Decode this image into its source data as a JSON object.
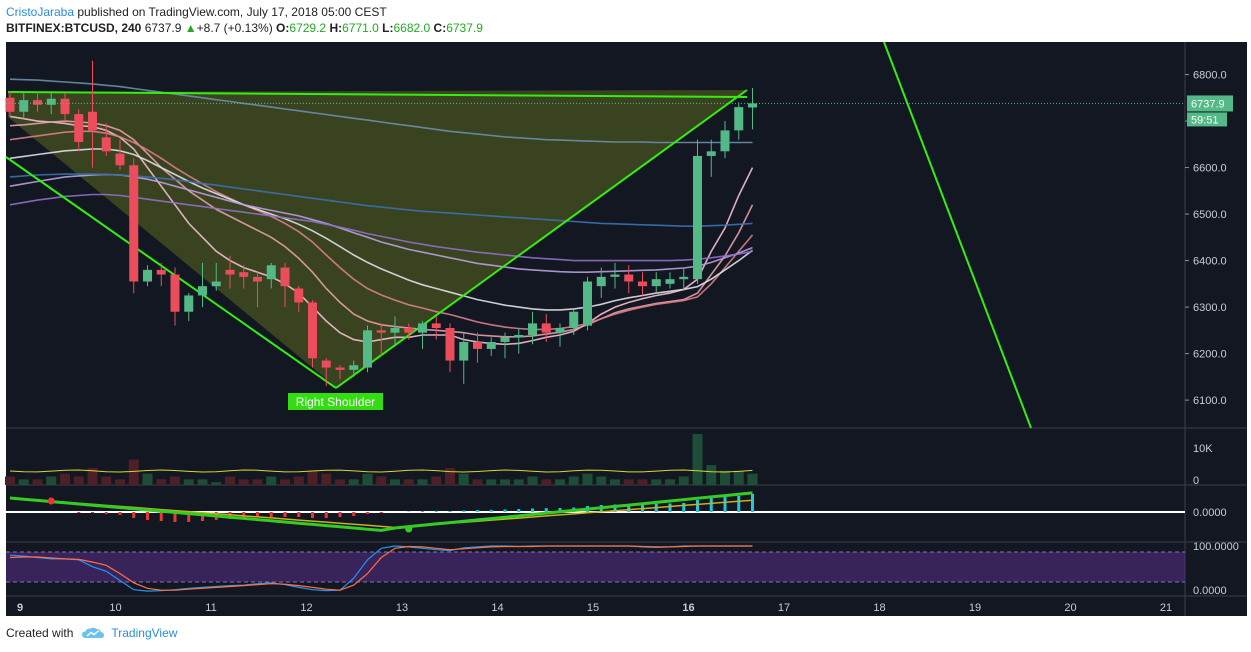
{
  "header": {
    "author": "CristoJaraba",
    "published": " published on TradingView.com, July 17, 2018 05:00 CEST",
    "symbol": "BITFINEX:BTCUSD, 240",
    "last": "6737.9",
    "change": "+8.7 (+0.13%)",
    "o_label": "O:",
    "o": "6729.2",
    "h_label": "H:",
    "h": "6771.0",
    "l_label": "L:",
    "l": "6682.0",
    "c_label": "C:",
    "c": "6737.9"
  },
  "footer": {
    "created": "Created with",
    "brand": "TradingView"
  },
  "colors": {
    "bg": "#131722",
    "up": "#53b987",
    "down": "#eb4d5c",
    "trend": "#33ee11",
    "panel_border": "#3a3f4a"
  },
  "chart_data": {
    "type": "candlestick",
    "x_ticks": [
      "9",
      "10",
      "11",
      "12",
      "13",
      "14",
      "15",
      "16",
      "17",
      "18",
      "19",
      "20",
      "21"
    ],
    "y_ticks": [
      "6800.0",
      "6700.0",
      "6600.0",
      "6500.0",
      "6400.0",
      "6300.0",
      "6200.0",
      "6100.0"
    ],
    "ylim": [
      6040,
      6870
    ],
    "last_price_label": "6737.9",
    "countdown_label": "59:51",
    "annotation": "Right Shoulder",
    "volume_ticks": [
      "10K",
      "0"
    ],
    "macd_ticks": [
      "0.0000"
    ],
    "rsi_ticks": [
      "100.0000",
      "0.0000"
    ],
    "candles": [
      [
        6750,
        6765,
        6710,
        6720
      ],
      [
        6720,
        6760,
        6705,
        6745
      ],
      [
        6745,
        6762,
        6720,
        6735
      ],
      [
        6735,
        6760,
        6715,
        6748
      ],
      [
        6748,
        6760,
        6700,
        6715
      ],
      [
        6715,
        6725,
        6635,
        6655
      ],
      [
        6720,
        6830,
        6600,
        6680
      ],
      [
        6665,
        6695,
        6625,
        6635
      ],
      [
        6630,
        6660,
        6595,
        6605
      ],
      [
        6605,
        6620,
        6330,
        6355
      ],
      [
        6355,
        6390,
        6345,
        6380
      ],
      [
        6380,
        6395,
        6345,
        6370
      ],
      [
        6370,
        6385,
        6260,
        6290
      ],
      [
        6290,
        6330,
        6270,
        6325
      ],
      [
        6325,
        6395,
        6300,
        6345
      ],
      [
        6345,
        6395,
        6335,
        6355
      ],
      [
        6380,
        6410,
        6340,
        6370
      ],
      [
        6375,
        6390,
        6340,
        6365
      ],
      [
        6365,
        6375,
        6300,
        6355
      ],
      [
        6360,
        6395,
        6340,
        6390
      ],
      [
        6385,
        6395,
        6300,
        6345
      ],
      [
        6340,
        6345,
        6290,
        6310
      ],
      [
        6310,
        6315,
        6170,
        6190
      ],
      [
        6185,
        6190,
        6130,
        6170
      ],
      [
        6170,
        6175,
        6145,
        6165
      ],
      [
        6165,
        6185,
        6150,
        6175
      ],
      [
        6170,
        6260,
        6160,
        6250
      ],
      [
        6250,
        6265,
        6195,
        6245
      ],
      [
        6245,
        6280,
        6215,
        6255
      ],
      [
        6255,
        6265,
        6230,
        6245
      ],
      [
        6245,
        6270,
        6210,
        6265
      ],
      [
        6265,
        6280,
        6230,
        6255
      ],
      [
        6255,
        6265,
        6160,
        6185
      ],
      [
        6185,
        6245,
        6135,
        6225
      ],
      [
        6225,
        6245,
        6180,
        6210
      ],
      [
        6210,
        6235,
        6195,
        6225
      ],
      [
        6225,
        6245,
        6190,
        6235
      ],
      [
        6235,
        6255,
        6200,
        6240
      ],
      [
        6240,
        6290,
        6220,
        6265
      ],
      [
        6265,
        6285,
        6225,
        6245
      ],
      [
        6245,
        6265,
        6215,
        6255
      ],
      [
        6255,
        6295,
        6240,
        6290
      ],
      [
        6260,
        6365,
        6250,
        6355
      ],
      [
        6345,
        6385,
        6320,
        6365
      ],
      [
        6365,
        6395,
        6340,
        6370
      ],
      [
        6370,
        6390,
        6330,
        6355
      ],
      [
        6355,
        6375,
        6325,
        6345
      ],
      [
        6345,
        6375,
        6330,
        6360
      ],
      [
        6350,
        6375,
        6340,
        6360
      ],
      [
        6360,
        6385,
        6335,
        6365
      ],
      [
        6360,
        6660,
        6350,
        6625
      ],
      [
        6625,
        6660,
        6580,
        6635
      ],
      [
        6635,
        6700,
        6620,
        6680
      ],
      [
        6680,
        6740,
        6660,
        6730
      ],
      [
        6729.2,
        6771,
        6682,
        6737.9
      ]
    ],
    "ma_lines": [
      {
        "color": "#f2c0d0",
        "values": [
          6710,
          6705,
          6700,
          6698,
          6695,
          6690,
          6688,
          6680,
          6665,
          6640,
          6600,
          6560,
          6520,
          6480,
          6450,
          6420,
          6400,
          6385,
          6375,
          6365,
          6350,
          6330,
          6300,
          6270,
          6245,
          6230,
          6225,
          6230,
          6235,
          6235,
          6240,
          6240,
          6240,
          6230,
          6225,
          6222,
          6220,
          6222,
          6228,
          6235,
          6240,
          6248,
          6265,
          6285,
          6300,
          6310,
          6318,
          6325,
          6330,
          6338,
          6360,
          6420,
          6470,
          6540,
          6600
        ]
      },
      {
        "color": "#e8a0a8",
        "values": [
          6690,
          6692,
          6695,
          6698,
          6700,
          6698,
          6696,
          6690,
          6680,
          6660,
          6630,
          6600,
          6575,
          6550,
          6530,
          6510,
          6495,
          6480,
          6465,
          6450,
          6430,
          6405,
          6375,
          6340,
          6310,
          6285,
          6270,
          6262,
          6258,
          6255,
          6252,
          6250,
          6248,
          6245,
          6240,
          6238,
          6236,
          6236,
          6238,
          6242,
          6246,
          6252,
          6262,
          6275,
          6288,
          6296,
          6302,
          6308,
          6312,
          6316,
          6330,
          6370,
          6410,
          6460,
          6520
        ]
      },
      {
        "color": "#d9808a",
        "values": [
          6660,
          6664,
          6668,
          6672,
          6676,
          6678,
          6678,
          6674,
          6666,
          6654,
          6638,
          6620,
          6600,
          6582,
          6565,
          6548,
          6534,
          6520,
          6508,
          6495,
          6480,
          6462,
          6440,
          6412,
          6385,
          6360,
          6340,
          6326,
          6315,
          6305,
          6298,
          6290,
          6284,
          6276,
          6268,
          6262,
          6257,
          6254,
          6252,
          6252,
          6254,
          6258,
          6265,
          6275,
          6285,
          6293,
          6300,
          6306,
          6310,
          6314,
          6322,
          6350,
          6385,
          6420,
          6455
        ]
      },
      {
        "color": "#e0e0e8",
        "values": [
          6620,
          6624,
          6628,
          6632,
          6636,
          6638,
          6640,
          6640,
          6636,
          6628,
          6615,
          6600,
          6585,
          6570,
          6556,
          6544,
          6532,
          6520,
          6510,
          6500,
          6490,
          6478,
          6464,
          6448,
          6430,
          6412,
          6396,
          6382,
          6370,
          6358,
          6348,
          6340,
          6332,
          6324,
          6316,
          6310,
          6304,
          6300,
          6296,
          6294,
          6294,
          6296,
          6300,
          6306,
          6314,
          6320,
          6325,
          6330,
          6334,
          6338,
          6344,
          6360,
          6380,
          6400,
          6422
        ]
      },
      {
        "color": "#b9a0e0",
        "values": [
          6560,
          6565,
          6570,
          6575,
          6580,
          6582,
          6584,
          6585,
          6584,
          6580,
          6575,
          6568,
          6560,
          6552,
          6544,
          6536,
          6528,
          6520,
          6514,
          6508,
          6502,
          6496,
          6488,
          6480,
          6470,
          6460,
          6450,
          6440,
          6432,
          6424,
          6418,
          6412,
          6406,
          6400,
          6394,
          6390,
          6386,
          6382,
          6380,
          6378,
          6376,
          6375,
          6375,
          6376,
          6377,
          6378,
          6379,
          6380,
          6382,
          6384,
          6388,
          6396,
          6406,
          6416,
          6428
        ]
      },
      {
        "color": "#9070c8",
        "values": [
          6520,
          6525,
          6530,
          6534,
          6538,
          6540,
          6542,
          6542,
          6540,
          6536,
          6532,
          6528,
          6524,
          6520,
          6516,
          6512,
          6508,
          6504,
          6500,
          6496,
          6492,
          6488,
          6484,
          6478,
          6472,
          6465,
          6458,
          6452,
          6446,
          6440,
          6435,
          6430,
          6426,
          6422,
          6418,
          6415,
          6412,
          6409,
          6406,
          6404,
          6402,
          6400,
          6400,
          6400,
          6400,
          6400,
          6400,
          6400,
          6400,
          6401,
          6403,
          6406,
          6410,
          6414,
          6420
        ]
      },
      {
        "color": "#3a72b0",
        "values": [
          6580,
          6582,
          6584,
          6585,
          6586,
          6586,
          6586,
          6585,
          6584,
          6582,
          6580,
          6577,
          6574,
          6570,
          6566,
          6562,
          6558,
          6554,
          6550,
          6546,
          6542,
          6538,
          6534,
          6530,
          6526,
          6522,
          6518,
          6515,
          6512,
          6509,
          6506,
          6504,
          6502,
          6500,
          6498,
          6496,
          6494,
          6492,
          6490,
          6488,
          6486,
          6484,
          6482,
          6480,
          6479,
          6478,
          6477,
          6476,
          6475,
          6474,
          6474,
          6475,
          6476,
          6478,
          6480
        ]
      },
      {
        "color": "#6a8fa8",
        "values": [
          6790,
          6789,
          6788,
          6786,
          6784,
          6782,
          6780,
          6777,
          6774,
          6770,
          6766,
          6762,
          6758,
          6754,
          6750,
          6746,
          6742,
          6738,
          6734,
          6730,
          6726,
          6722,
          6718,
          6714,
          6710,
          6706,
          6702,
          6698,
          6694,
          6690,
          6686,
          6682,
          6678,
          6675,
          6672,
          6669,
          6666,
          6664,
          6662,
          6660,
          6659,
          6658,
          6657,
          6656,
          6655,
          6655,
          6655,
          6654,
          6654,
          6654,
          6654,
          6654,
          6654,
          6654,
          6654
        ]
      }
    ],
    "volume": [
      3,
      2,
      2,
      3,
      4,
      3,
      6,
      3,
      2,
      9,
      4,
      2,
      3,
      2,
      2,
      1,
      3,
      2,
      2,
      3,
      2,
      3,
      5,
      4,
      2,
      2,
      4,
      3,
      2,
      2,
      2,
      3,
      6,
      4,
      2,
      2,
      2,
      2,
      3,
      2,
      2,
      3,
      4,
      3,
      2,
      2,
      2,
      2,
      2,
      3,
      18,
      7,
      5,
      5,
      4
    ],
    "macd_hist": [
      0,
      0,
      0,
      0,
      0,
      -0.1,
      -0.1,
      -0.2,
      -0.3,
      -0.6,
      -0.8,
      -0.9,
      -1,
      -1,
      -0.9,
      -0.8,
      -0.7,
      -0.6,
      -0.5,
      -0.5,
      -0.5,
      -0.5,
      -0.6,
      -0.6,
      -0.5,
      -0.4,
      -0.2,
      -0.1,
      0,
      0.05,
      0.1,
      0.12,
      0.1,
      0.15,
      0.2,
      0.22,
      0.25,
      0.3,
      0.35,
      0.38,
      0.4,
      0.45,
      0.6,
      0.7,
      0.75,
      0.78,
      0.8,
      0.82,
      0.85,
      0.9,
      1.2,
      1.4,
      1.5,
      1.6,
      1.8
    ],
    "rsi_k": [
      80,
      78,
      75,
      72,
      72,
      70,
      55,
      45,
      25,
      5,
      2,
      3,
      5,
      8,
      10,
      12,
      14,
      15,
      18,
      20,
      16,
      10,
      5,
      3,
      4,
      30,
      70,
      95,
      100,
      98,
      95,
      92,
      90,
      96,
      98,
      100,
      100,
      99,
      100,
      100,
      100,
      100,
      100,
      100,
      100,
      100,
      98,
      97,
      98,
      100,
      100,
      100,
      100,
      100,
      100
    ],
    "rsi_d": [
      75,
      76,
      76,
      74,
      72,
      71,
      65,
      58,
      40,
      20,
      8,
      4,
      4,
      6,
      8,
      10,
      12,
      14,
      16,
      18,
      17,
      14,
      10,
      6,
      4,
      15,
      40,
      75,
      95,
      99,
      98,
      95,
      92,
      94,
      96,
      98,
      99,
      99,
      99,
      100,
      100,
      100,
      100,
      100,
      100,
      100,
      99,
      98,
      98,
      99,
      100,
      100,
      100,
      100,
      100
    ]
  }
}
